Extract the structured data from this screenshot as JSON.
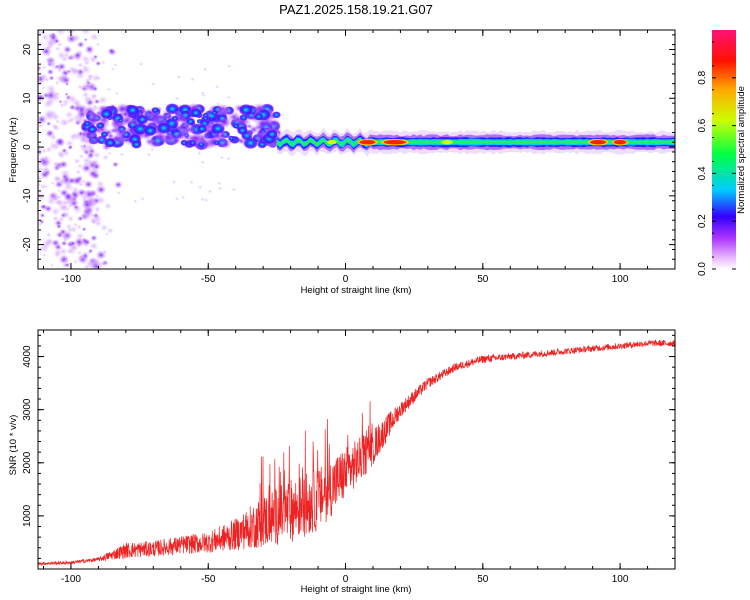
{
  "title": "PAZ1.2025.158.19.21.G07",
  "chart_data": [
    {
      "type": "heatmap",
      "xlabel": "Height of straight line (km)",
      "ylabel": "Frequency (Hz)",
      "xlim": [
        -112,
        120
      ],
      "ylim": [
        -25,
        24
      ],
      "x_ticks": [
        -100,
        -50,
        0,
        50,
        100
      ],
      "x_tick_labels": [
        "-100",
        "-50",
        "0",
        "50",
        "100"
      ],
      "y_ticks": [
        -20,
        -10,
        0,
        10,
        20
      ],
      "y_tick_labels": [
        "-20",
        "-10",
        "0",
        "10",
        "20"
      ],
      "colorbar": {
        "label": "Normalized spectral amplitude",
        "range": [
          0,
          1
        ],
        "ticks": [
          0.0,
          0.2,
          0.4,
          0.6,
          0.8
        ],
        "tick_labels": [
          "0.0",
          "0.2",
          "0.4",
          "0.6",
          "0.8"
        ],
        "colormap": [
          "#ffffff",
          "#cc66ff",
          "#5500ff",
          "#0000ff",
          "#00ffff",
          "#00ff00",
          "#ffff00",
          "#ff8800",
          "#ff0000",
          "#ff00aa"
        ]
      },
      "features": [
        {
          "description_x": [
            -112,
            -90
          ],
          "freq_range": [
            -25,
            24
          ],
          "max_amplitude": 0.1
        },
        {
          "description_x": [
            -95,
            -25
          ],
          "freq_range": [
            0,
            8
          ],
          "max_amplitude": 0.35
        },
        {
          "description_x": [
            -25,
            120
          ],
          "freq_center": 1,
          "max_amplitude": 1.0
        }
      ]
    },
    {
      "type": "line",
      "xlabel": "Height of straight line (km)",
      "ylabel": "SNR (10 * v/v)",
      "xlim": [
        -112,
        120
      ],
      "ylim": [
        0,
        4500
      ],
      "x_ticks": [
        -100,
        -50,
        0,
        50,
        100
      ],
      "x_tick_labels": [
        "-100",
        "-50",
        "0",
        "50",
        "100"
      ],
      "y_ticks": [
        1000,
        2000,
        3000,
        4000
      ],
      "y_tick_labels": [
        "1000",
        "2000",
        "3000",
        "4000"
      ],
      "color": "#ee2222",
      "envelope": {
        "x": [
          -112,
          -100,
          -90,
          -80,
          -70,
          -60,
          -50,
          -40,
          -30,
          -20,
          -10,
          0,
          10,
          20,
          30,
          40,
          50,
          60,
          70,
          80,
          90,
          100,
          110,
          120
        ],
        "mean": [
          100,
          120,
          180,
          350,
          380,
          450,
          500,
          650,
          900,
          1100,
          1300,
          1800,
          2300,
          3000,
          3500,
          3800,
          3950,
          4000,
          4050,
          4100,
          4150,
          4200,
          4250,
          4250
        ],
        "amp": [
          60,
          60,
          80,
          300,
          300,
          350,
          400,
          600,
          1000,
          1200,
          1200,
          1000,
          700,
          300,
          200,
          150,
          150,
          130,
          130,
          120,
          120,
          120,
          120,
          120
        ]
      }
    }
  ]
}
